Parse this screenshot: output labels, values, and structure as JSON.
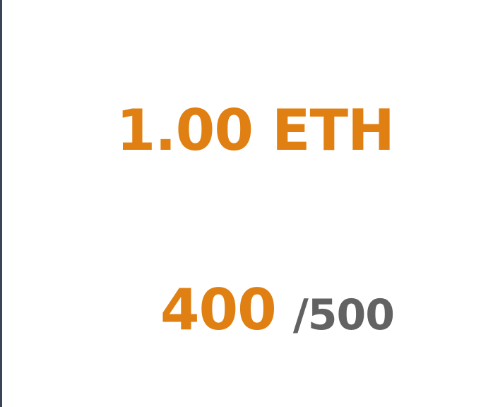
{
  "price": {
    "label": "1.00 ETH"
  },
  "supply": {
    "minted": "400",
    "total": "/500"
  },
  "colors": {
    "accent": "#e07f12",
    "muted": "#626262",
    "edge": "#3b4456",
    "background": "#ffffff"
  }
}
